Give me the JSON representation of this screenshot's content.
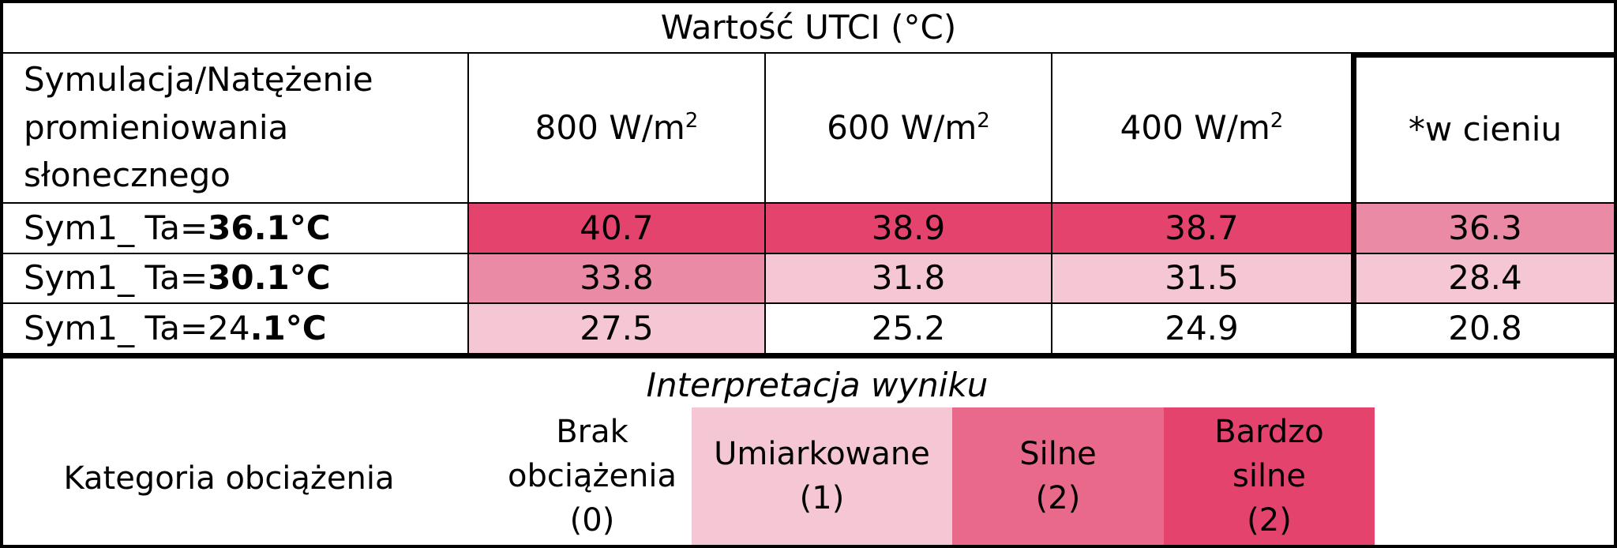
{
  "table": {
    "title": "Wartość UTCI (°C)",
    "header": {
      "first": [
        "Symulacja/Natężenie",
        "promieniowania",
        "słonecznego"
      ],
      "cols": [
        {
          "base": "800 W/m",
          "sup": "2"
        },
        {
          "base": "600 W/m",
          "sup": "2"
        },
        {
          "base": "400 W/m",
          "sup": "2"
        }
      ],
      "shade": "*w cieniu"
    },
    "rows": [
      {
        "prefix": "Sym1_ Ta=",
        "bold": "36.1°C",
        "values": [
          "40.7",
          "38.9",
          "38.7",
          "36.3"
        ]
      },
      {
        "prefix": "Sym1_ Ta=",
        "bold": "30.1°C",
        "values": [
          "33.8",
          "31.8",
          "31.5",
          "28.4"
        ]
      },
      {
        "prefix": "Sym1_ Ta=24",
        "bold": ".1°C",
        "values": [
          "27.5",
          "25.2",
          "24.9",
          "20.8"
        ]
      }
    ]
  },
  "legend": {
    "title": "Interpretacja wyniku",
    "label": "Kategoria obciążenia",
    "categories": [
      {
        "lines": [
          "Brak",
          "obciążenia",
          "(0)"
        ],
        "color": "#ffffff"
      },
      {
        "lines": [
          "Umiarkowane",
          "(1)"
        ],
        "color": "#f5c6d3"
      },
      {
        "lines": [
          "Silne",
          "(2)"
        ],
        "color": "#e8698a"
      },
      {
        "lines": [
          "Bardzo",
          "silne",
          "(2)"
        ],
        "color": "#e3436d"
      }
    ]
  },
  "colors": {
    "strong": "#e3436d",
    "medium": "#ea8aa4",
    "light": "#f5c6d3",
    "none": "#ffffff"
  }
}
